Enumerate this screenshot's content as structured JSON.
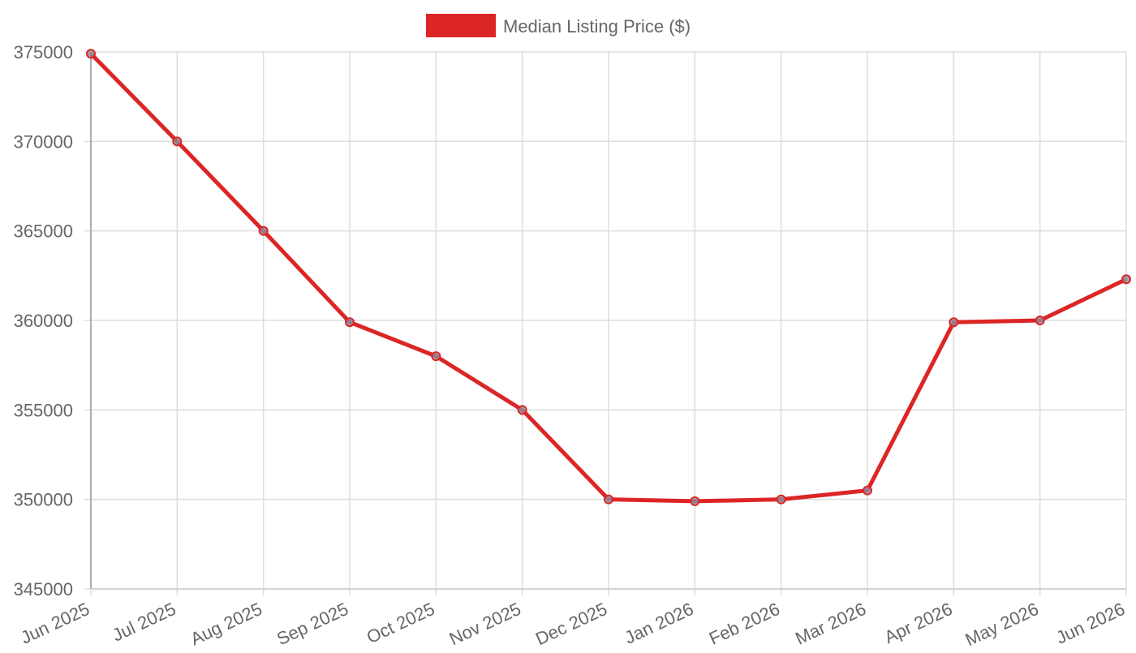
{
  "chart_data": {
    "type": "line",
    "categories": [
      "Jun 2025",
      "Jul 2025",
      "Aug 2025",
      "Sep 2025",
      "Oct 2025",
      "Nov 2025",
      "Dec 2025",
      "Jan 2026",
      "Feb 2026",
      "Mar 2026",
      "Apr 2026",
      "May 2026",
      "Jun 2026"
    ],
    "series": [
      {
        "name": "Median Listing Price ($)",
        "color": "#dc2626",
        "values": [
          374900,
          370000,
          365000,
          359900,
          358000,
          355000,
          350000,
          349900,
          350000,
          350500,
          359900,
          360000,
          362300
        ]
      }
    ],
    "ylim": [
      345000,
      375000
    ],
    "yticks": [
      345000,
      350000,
      355000,
      360000,
      365000,
      370000,
      375000
    ],
    "grid": true,
    "legend": "top"
  }
}
